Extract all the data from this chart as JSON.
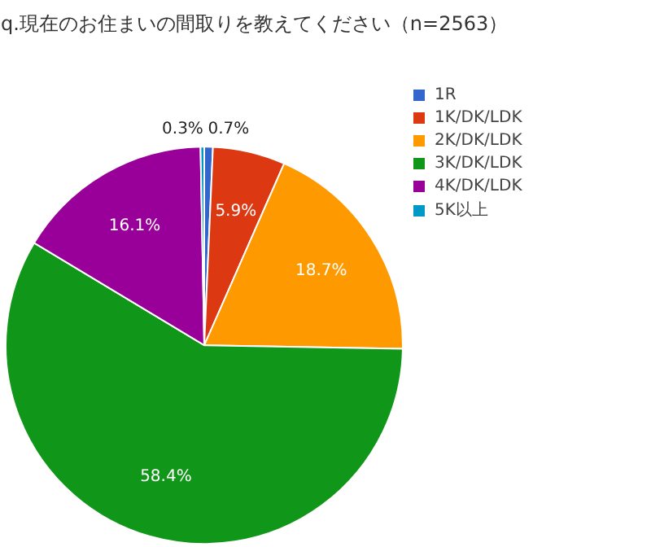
{
  "chart_data": {
    "type": "pie",
    "title": "q.現在のお住まいの間取りを教えてください（n=2563）",
    "categories": [
      "1R",
      "1K/DK/LDK",
      "2K/DK/LDK",
      "3K/DK/LDK",
      "4K/DK/LDK",
      "5K以上"
    ],
    "values": [
      0.7,
      5.9,
      18.7,
      58.4,
      16.1,
      0.3
    ],
    "value_labels": [
      "0.7%",
      "5.9%",
      "18.7%",
      "58.4%",
      "16.1%",
      "0.3%"
    ],
    "colors": [
      "#3366cc",
      "#dc3912",
      "#ff9900",
      "#109618",
      "#990099",
      "#0099c6"
    ],
    "legend": "top right"
  }
}
